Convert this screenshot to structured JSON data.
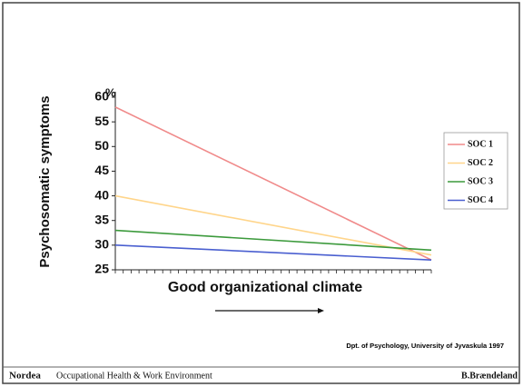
{
  "chart_data": {
    "type": "line",
    "y_label": "Psychosomatic symptoms",
    "x_label": "Good organizational climate",
    "y_unit": "%",
    "categories": [
      null,
      null
    ],
    "series": [
      {
        "name": "SOC 1",
        "color": "#f08a8a",
        "values": [
          58,
          27
        ]
      },
      {
        "name": "SOC 2",
        "color": "#ffd58a",
        "values": [
          40,
          28
        ]
      },
      {
        "name": "SOC 3",
        "color": "#3c9a3c",
        "values": [
          33,
          29
        ]
      },
      {
        "name": "SOC 4",
        "color": "#4a5fd0",
        "values": [
          30,
          27
        ]
      }
    ],
    "ylim": [
      25,
      60
    ],
    "yticks": [
      25,
      30,
      35,
      40,
      45,
      50,
      55,
      60
    ],
    "legend": "right",
    "annotation": "Dpt. of Psychology, University of Jyvaskula 1997"
  },
  "footer": {
    "left_brand": "Nordea",
    "left_text": "Occupational Health & Work Environment",
    "right": "B.Brændeland"
  }
}
